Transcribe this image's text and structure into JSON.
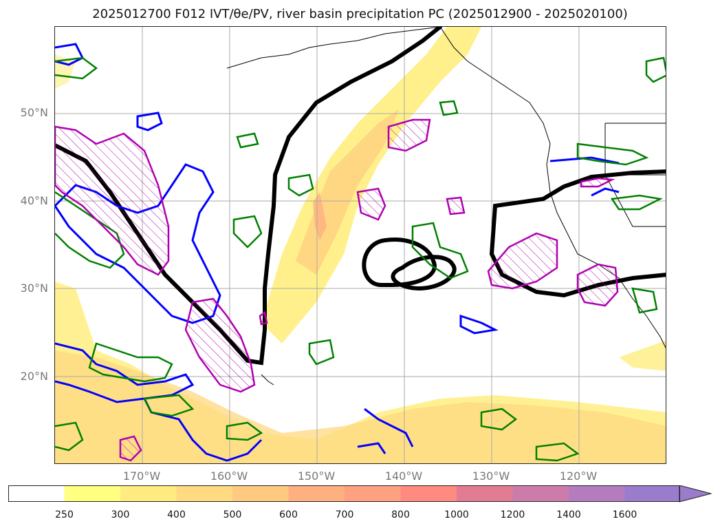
{
  "title": "2025012700 F012 IVT/θe/PV, river basin precipitation PC (2025012900 - 2025020100)",
  "lat_labels": [
    "50°N",
    "40°N",
    "30°N",
    "20°N"
  ],
  "lon_labels": [
    "170°W",
    "160°W",
    "150°W",
    "140°W",
    "130°W",
    "120°W"
  ],
  "colorbar": {
    "ticks": [
      "250",
      "300",
      "400",
      "500",
      "600",
      "700",
      "800",
      "1000",
      "1200",
      "1400",
      "1600"
    ],
    "colors": [
      "#ffffff",
      "#ffff80",
      "#ffeb80",
      "#ffda80",
      "#ffca80",
      "#ffb080",
      "#ffa080",
      "#ff8a80",
      "#e27c93",
      "#cc7caa",
      "#b47cbf",
      "#9a7ccc"
    ]
  },
  "contour_colors": {
    "ivt_fill": "#ffea80",
    "theta_e": "#000000",
    "pv": "#0000ff",
    "precip": "#008000",
    "hatch": "#b000b0"
  }
}
